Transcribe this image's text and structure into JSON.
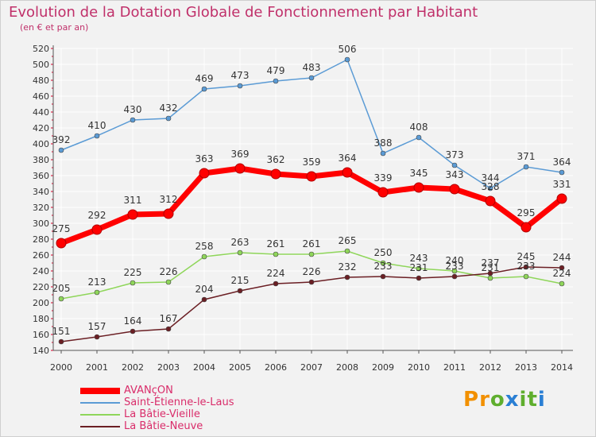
{
  "title": "Evolution de la Dotation Globale de Fonctionnement par Habitant",
  "subtitle": "(en € et par an)",
  "logo_text": "Proxiti",
  "colors": {
    "title": "#c0306a",
    "background": "#f2f2f2",
    "grid": "#ffffff",
    "axis_tick": "#d9002b",
    "label": "#333333"
  },
  "chart_data": {
    "type": "line",
    "title": "Evolution de la Dotation Globale de Fonctionnement par Habitant",
    "subtitle": "(en € et par an)",
    "xlabel": "",
    "ylabel": "",
    "x": [
      "2000",
      "2001",
      "2002",
      "2003",
      "2004",
      "2005",
      "2006",
      "2007",
      "2008",
      "2009",
      "2010",
      "2011",
      "2012",
      "2013",
      "2014"
    ],
    "ylim": [
      140,
      520
    ],
    "yticks": [
      140,
      160,
      180,
      200,
      220,
      240,
      260,
      280,
      300,
      320,
      340,
      360,
      380,
      400,
      420,
      440,
      460,
      480,
      500,
      520
    ],
    "grid": true,
    "legend_position": "bottom-left",
    "series": [
      {
        "name": "AVANçON",
        "color": "#ff0000",
        "emphasis": true,
        "values": [
          275,
          292,
          311,
          312,
          363,
          369,
          362,
          359,
          364,
          339,
          345,
          343,
          328,
          295,
          331
        ]
      },
      {
        "name": "Saint-Étienne-le-Laus",
        "color": "#5b9bd5",
        "emphasis": false,
        "values": [
          392,
          410,
          430,
          432,
          469,
          473,
          479,
          483,
          506,
          388,
          408,
          373,
          344,
          371,
          364
        ]
      },
      {
        "name": "La Bâtie-Vieille",
        "color": "#8fd65a",
        "emphasis": false,
        "values": [
          205,
          213,
          225,
          226,
          258,
          263,
          261,
          261,
          265,
          250,
          243,
          240,
          231,
          233,
          224
        ]
      },
      {
        "name": "La Bâtie-Neuve",
        "color": "#6b1f24",
        "emphasis": false,
        "values": [
          151,
          157,
          164,
          167,
          204,
          215,
          224,
          226,
          232,
          233,
          231,
          233,
          237,
          245,
          244
        ]
      }
    ]
  }
}
